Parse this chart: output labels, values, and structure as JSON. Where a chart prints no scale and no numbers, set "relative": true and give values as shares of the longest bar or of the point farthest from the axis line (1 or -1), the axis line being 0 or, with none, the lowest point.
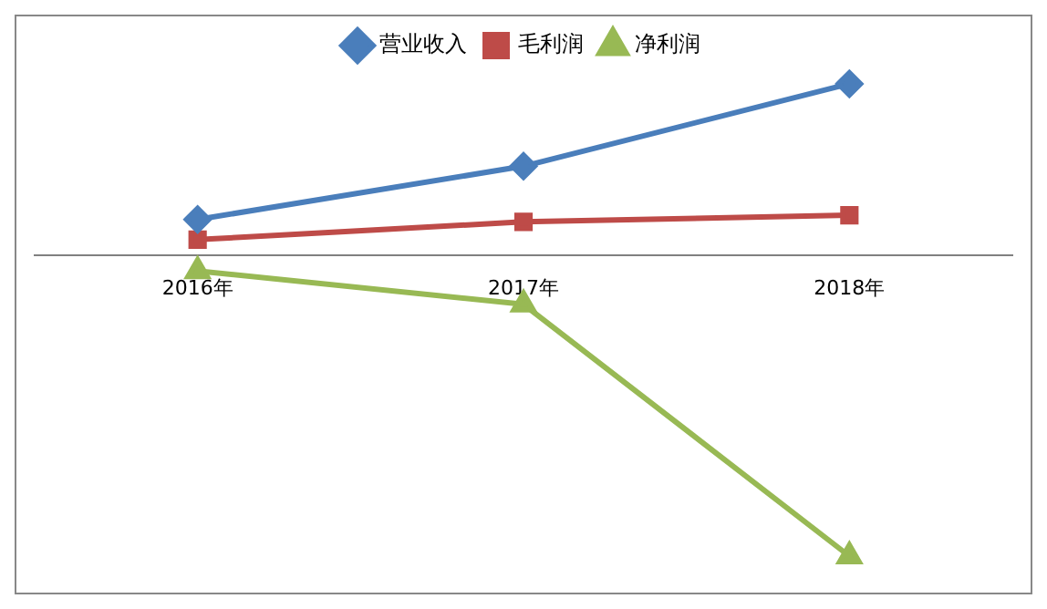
{
  "chart_data": {
    "type": "line",
    "relative": true,
    "categories": [
      "2016年",
      "2017年",
      "2018年"
    ],
    "series": [
      {
        "name": "营业收入",
        "color": "#4a7ebb",
        "marker": "diamond",
        "values": [
          0.119,
          0.296,
          0.57
        ]
      },
      {
        "name": "毛利润",
        "color": "#be4b48",
        "marker": "square",
        "values": [
          0.052,
          0.111,
          0.133
        ]
      },
      {
        "name": "净利润",
        "color": "#98b954",
        "marker": "triangle",
        "values": [
          -0.052,
          -0.163,
          -1
        ]
      }
    ],
    "legend": "top",
    "grid": false
  }
}
